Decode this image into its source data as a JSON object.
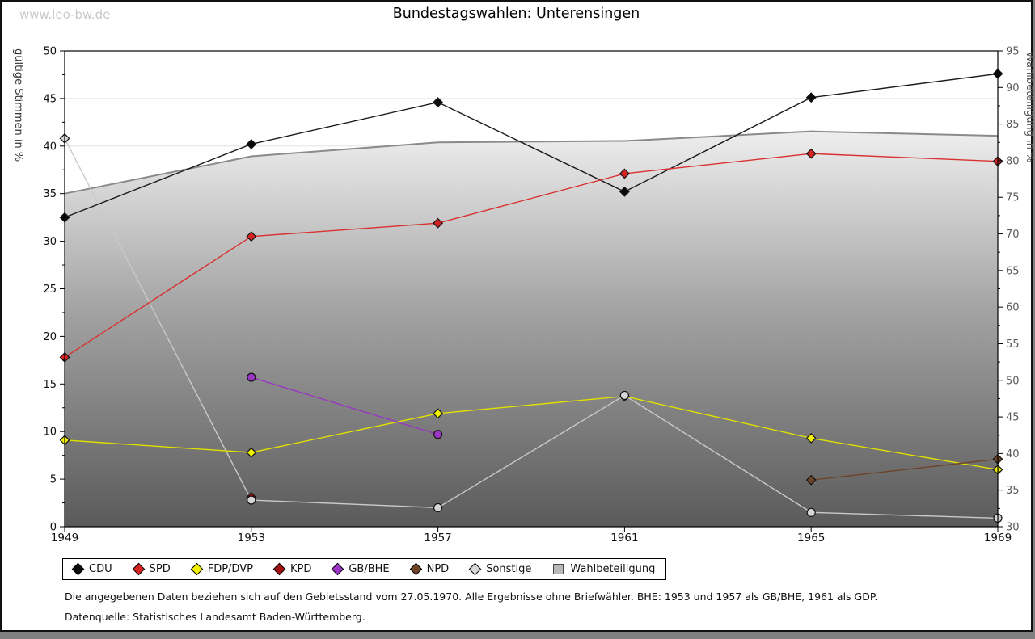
{
  "page": {
    "watermark": "www.leo-bw.de",
    "title": "Bundestagswahlen: Unterensingen",
    "footnote1": "Die angegebenen Daten beziehen sich auf den Gebietsstand vom 27.05.1970. Alle Ergebnisse ohne Briefwähler. BHE: 1953 und 1957 als GB/BHE, 1961 als GDP.",
    "footnote2": "Datenquelle: Statistisches Landesamt Baden-Württemberg.",
    "colors": {
      "page_background": "#ffffff",
      "outside_background": "#808080",
      "watermark": "#c9c9c9",
      "gridline": "#e4e4e4"
    }
  },
  "chart_data": {
    "type": "line",
    "title": "Bundestagswahlen: Unterensingen",
    "x": [
      1949,
      1953,
      1957,
      1961,
      1965,
      1969
    ],
    "left_axis": {
      "label": "gültige Stimmen in %",
      "min": 0,
      "max": 50,
      "major_tick": 5,
      "minor_tick": 2.5
    },
    "right_axis": {
      "label": "Wahlbeteiligung in %",
      "min": 30,
      "max": 95,
      "major_tick": 5,
      "minor_tick": 2.5
    },
    "grid": "horizontal, every 5, light gray, hidden behind turnout area",
    "legend_position": "below plot, boxed, horizontal",
    "series": [
      {
        "name": "CDU",
        "axis": "left",
        "type": "line",
        "color": "#1a1a1a",
        "marker_fill": "#0a0a0a",
        "marker_shapes": [
          "diamond",
          "diamond",
          "diamond",
          "diamond",
          "diamond",
          "diamond"
        ],
        "legend_glyph": "diamond",
        "values": [
          32.5,
          40.2,
          44.6,
          35.2,
          45.1,
          47.6
        ]
      },
      {
        "name": "SPD",
        "axis": "left",
        "type": "line",
        "color": "#d93030",
        "marker_fill": "#d42424",
        "marker_shapes": [
          "diamond",
          "diamond",
          "diamond",
          "diamond",
          "diamond",
          "diamond"
        ],
        "legend_glyph": "diamond",
        "values": [
          17.8,
          30.5,
          31.9,
          37.1,
          39.2,
          38.4
        ]
      },
      {
        "name": "FDP/DVP",
        "axis": "left",
        "type": "line",
        "color": "#e0e000",
        "marker_fill": "#f2f200",
        "marker_shapes": [
          "diamond",
          "diamond",
          "diamond",
          "diamond",
          "diamond",
          "diamond"
        ],
        "legend_glyph": "diamond",
        "values": [
          9.1,
          7.8,
          11.9,
          13.7,
          9.3,
          6.0
        ]
      },
      {
        "name": "KPD",
        "axis": "left",
        "type": "line",
        "color": "#a01212",
        "marker_fill": "#a01212",
        "marker_shapes": [
          null,
          "diamond",
          null,
          null,
          null,
          null
        ],
        "legend_glyph": "diamond",
        "values": [
          null,
          3.1,
          null,
          null,
          null,
          null
        ]
      },
      {
        "name": "GB/BHE",
        "axis": "left",
        "type": "line",
        "color": "#9a35c4",
        "marker_fill": "#9a35c4",
        "marker_shapes": [
          null,
          "circle",
          "circle",
          null,
          null,
          null
        ],
        "legend_glyph": "diamond",
        "values": [
          null,
          15.7,
          9.7,
          null,
          null,
          null
        ]
      },
      {
        "name": "NPD",
        "axis": "left",
        "type": "line",
        "color": "#6e4327",
        "marker_fill": "#6e4327",
        "marker_shapes": [
          null,
          null,
          null,
          null,
          "diamond",
          "diamond"
        ],
        "legend_glyph": "diamond",
        "values": [
          null,
          null,
          null,
          null,
          4.9,
          7.1
        ]
      },
      {
        "name": "Sonstige",
        "axis": "left",
        "type": "line",
        "color": "#c9c9c9",
        "marker_fill": "#d6d6d6",
        "marker_shapes": [
          "diamond",
          "circle",
          "circle",
          "circle",
          "circle",
          "circle"
        ],
        "legend_glyph": "diamond",
        "values": [
          40.8,
          2.8,
          2.0,
          13.8,
          1.5,
          0.9
        ]
      },
      {
        "name": "Wahlbeteiligung",
        "axis": "right",
        "type": "area",
        "color": "#8a8a8a",
        "area_gradient_top": "#ffffff",
        "area_gradient_bottom": "#5a5a5a",
        "legend_glyph": "square",
        "legend_glyph_fill": "#b9b9b9",
        "values": [
          75.5,
          80.6,
          82.5,
          82.7,
          84.0,
          83.4
        ]
      }
    ]
  }
}
